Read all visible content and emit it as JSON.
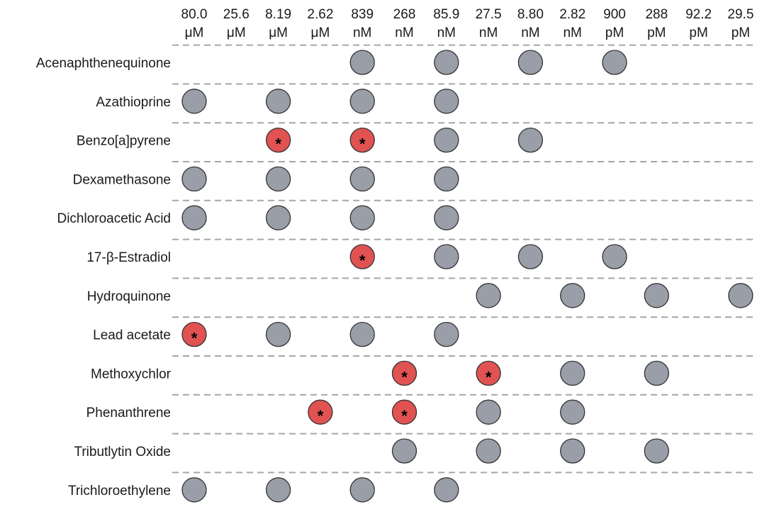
{
  "chart_data": {
    "type": "dot-matrix",
    "title": "",
    "columns": [
      {
        "value": "80.0",
        "unit": "μM"
      },
      {
        "value": "25.6",
        "unit": "μM"
      },
      {
        "value": "8.19",
        "unit": "μM"
      },
      {
        "value": "2.62",
        "unit": "μM"
      },
      {
        "value": "839",
        "unit": "nM"
      },
      {
        "value": "268",
        "unit": "nM"
      },
      {
        "value": "85.9",
        "unit": "nM"
      },
      {
        "value": "27.5",
        "unit": "nM"
      },
      {
        "value": "8.80",
        "unit": "nM"
      },
      {
        "value": "2.82",
        "unit": "nM"
      },
      {
        "value": "900",
        "unit": "pM"
      },
      {
        "value": "288",
        "unit": "pM"
      },
      {
        "value": "92.2",
        "unit": "pM"
      },
      {
        "value": "29.5",
        "unit": "pM"
      }
    ],
    "rows": [
      {
        "label": "Acenaphthenequinone",
        "tested": [
          4,
          6,
          8,
          10
        ],
        "significant": []
      },
      {
        "label": "Azathioprine",
        "tested": [
          0,
          2,
          4,
          6
        ],
        "significant": []
      },
      {
        "label": "Benzo[a]pyrene",
        "tested": [
          2,
          4,
          6,
          8
        ],
        "significant": [
          2,
          4
        ]
      },
      {
        "label": "Dexamethasone",
        "tested": [
          0,
          2,
          4,
          6
        ],
        "significant": []
      },
      {
        "label": "Dichloroacetic Acid",
        "tested": [
          0,
          2,
          4,
          6
        ],
        "significant": []
      },
      {
        "label": "17-β-Estradiol",
        "tested": [
          4,
          6,
          8,
          10
        ],
        "significant": [
          4
        ]
      },
      {
        "label": "Hydroquinone",
        "tested": [
          7,
          9,
          11,
          13
        ],
        "significant": []
      },
      {
        "label": "Lead acetate",
        "tested": [
          0,
          2,
          4,
          6
        ],
        "significant": [
          0
        ]
      },
      {
        "label": "Methoxychlor",
        "tested": [
          5,
          7,
          9,
          11
        ],
        "significant": [
          5,
          7
        ]
      },
      {
        "label": "Phenanthrene",
        "tested": [
          3,
          5,
          7,
          9
        ],
        "significant": [
          3,
          5
        ]
      },
      {
        "label": "Tributlytin Oxide",
        "tested": [
          5,
          7,
          9,
          11
        ],
        "significant": []
      },
      {
        "label": "Trichloroethylene",
        "tested": [
          0,
          2,
          4,
          6
        ],
        "significant": []
      }
    ],
    "significance_marker": "*",
    "colors": {
      "tested": "#999ea8",
      "significant": "#e15252",
      "separator": "#a6a6a6"
    },
    "grid": "dashed row separators"
  }
}
